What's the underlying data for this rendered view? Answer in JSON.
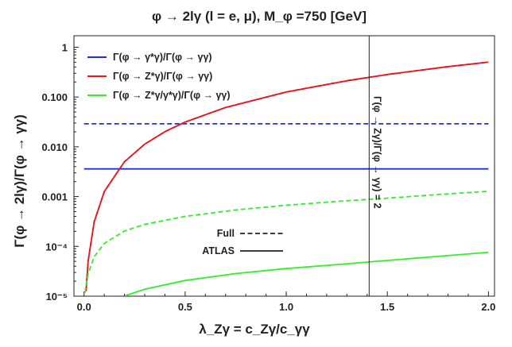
{
  "chart_data": {
    "type": "line",
    "title": "φ → 2lγ (l = e, μ), M_φ =750 [GeV]",
    "xlabel": "λ_Zγ = c_Zγ/c_γγ",
    "ylabel": "Γ(φ → 2lγ)/Γ(φ → γγ)",
    "xlim": [
      -0.05,
      2.03
    ],
    "ylim": [
      1e-05,
      1.7
    ],
    "y_scale": "log",
    "x_ticks": [
      0.0,
      0.5,
      1.0,
      1.5,
      2.0
    ],
    "x_tick_labels": [
      "0.0",
      "0.5",
      "1.0",
      "1.5",
      "2.0"
    ],
    "y_ticks": [
      1e-05,
      0.0001,
      0.001,
      0.01,
      0.1,
      1
    ],
    "y_tick_labels": [
      "10⁻⁵",
      "10⁻⁴",
      "0.001",
      "0.010",
      "0.100",
      "1"
    ],
    "series": [
      {
        "name": "Γ(φ → γ*γ)/Γ(φ → γγ)",
        "color": "#1f2fdc",
        "style": "dashed",
        "x": [
          0.0,
          2.0
        ],
        "y": [
          0.029,
          0.029
        ]
      },
      {
        "name": "Γ(φ → γ*γ)/Γ(φ → γγ)",
        "color": "#1f2fdc",
        "style": "solid",
        "x": [
          0.0,
          2.0
        ],
        "y": [
          0.0036,
          0.0036
        ]
      },
      {
        "name": "Γ(φ → Z*γ)/Γ(φ → γγ)",
        "color": "#e8141e",
        "style": "solid",
        "x": [
          0.01,
          0.02,
          0.05,
          0.1,
          0.2,
          0.3,
          0.4,
          0.5,
          0.7,
          1.0,
          1.3,
          1.5,
          1.8,
          2.0
        ],
        "y": [
          1.26e-05,
          5e-05,
          0.00031,
          0.00126,
          0.00502,
          0.0113,
          0.0201,
          0.0314,
          0.0616,
          0.126,
          0.212,
          0.283,
          0.407,
          0.502
        ]
      },
      {
        "name": "Γ(φ → Z*γ)/Γ(φ → γγ)",
        "color": "#e8141e",
        "style": "dashed",
        "x": [
          0.01,
          0.02,
          0.05,
          0.1,
          0.2,
          0.3,
          0.4,
          0.5,
          0.7,
          1.0,
          1.3,
          1.5,
          1.8,
          2.0
        ],
        "y": [
          1.26e-05,
          5e-05,
          0.00031,
          0.00126,
          0.00502,
          0.0113,
          0.0201,
          0.0314,
          0.0616,
          0.126,
          0.212,
          0.283,
          0.407,
          0.502
        ]
      },
      {
        "name": "Γ(φ → Z*γ/γ*γ)/Γ(φ → γγ)",
        "color": "#33ee2a",
        "style": "dashed",
        "x": [
          0.005,
          0.01,
          0.02,
          0.05,
          0.1,
          0.2,
          0.3,
          0.5,
          0.75,
          1.0,
          1.25,
          1.5,
          1.75,
          2.0
        ],
        "y": [
          1.17e-05,
          1.7e-05,
          2.8e-05,
          6.2e-05,
          0.000115,
          0.000204,
          0.000277,
          0.0004,
          0.00054,
          0.00067,
          0.0008,
          0.00093,
          0.0011,
          0.00128
        ]
      },
      {
        "name": "Γ(φ → Z*γ/γ*γ)/Γ(φ → γγ)",
        "color": "#33ee2a",
        "style": "solid",
        "x": [
          0.2,
          0.3,
          0.5,
          0.75,
          1.0,
          1.25,
          1.5,
          1.75,
          2.0
        ],
        "y": [
          1.01e-05,
          1.38e-05,
          2.07e-05,
          2.85e-05,
          3.59e-05,
          4.3e-05,
          5.22e-05,
          6.3e-05,
          7.6e-05
        ]
      }
    ],
    "vline": {
      "x": 1.41,
      "label": "Γ(φ → Zγ)/Γ(φ → γγ) = 2",
      "color": "#222222"
    },
    "legend": {
      "placement": "top-left",
      "entries": [
        {
          "label": "Γ(φ → γ*γ)/Γ(φ → γγ)",
          "color": "#1f2fdc"
        },
        {
          "label": "Γ(φ → Z*γ)/Γ(φ → γγ)",
          "color": "#e8141e"
        },
        {
          "label": "Γ(φ → Z*γ/γ*γ)/Γ(φ → γγ)",
          "color": "#33ee2a"
        }
      ]
    },
    "style_legend": {
      "placement": "bottom-left",
      "entries": [
        {
          "label": "Full",
          "style": "dashed"
        },
        {
          "label": "ATLAS",
          "style": "solid"
        }
      ]
    },
    "grid": false
  }
}
